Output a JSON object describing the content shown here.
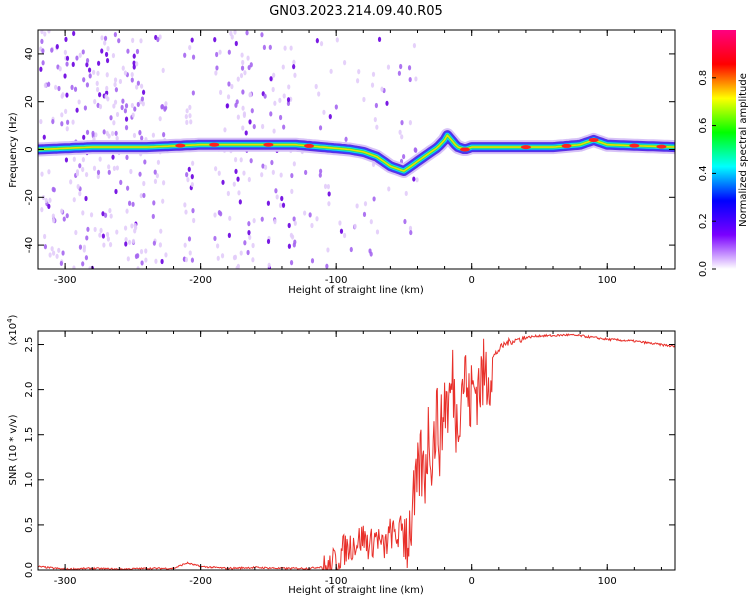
{
  "title": "GN03.2023.214.09.40.R05",
  "chart_data": [
    {
      "type": "heatmap",
      "xlabel": "Height of straight line (km)",
      "ylabel": "Frequency (Hz)",
      "xlim": [
        -320,
        150
      ],
      "ylim": [
        -50,
        50
      ],
      "xticks": [
        -300,
        -200,
        -100,
        0,
        100
      ],
      "yticks": [
        -40,
        -20,
        0,
        20,
        40
      ],
      "colorbar": {
        "label": "Normalized spectral amplitude",
        "range": [
          0,
          1
        ],
        "ticks": [
          "0.0",
          "0.2",
          "0.4",
          "0.6",
          "0.8"
        ],
        "colors": [
          "#ffffff",
          "#7a00ff",
          "#0000ff",
          "#00ffff",
          "#00ff00",
          "#ffff00",
          "#ff0000",
          "#ff0080"
        ]
      },
      "ridge": {
        "x": [
          -320,
          -280,
          -240,
          -200,
          -160,
          -130,
          -110,
          -90,
          -80,
          -70,
          -60,
          -55,
          -50,
          -45,
          -40,
          -35,
          -30,
          -25,
          -20,
          -18,
          -15,
          -12,
          -10,
          -5,
          0,
          20,
          60,
          80,
          90,
          100,
          150
        ],
        "y": [
          0,
          1,
          1,
          2,
          2,
          2,
          1,
          0,
          -1,
          -3,
          -7,
          -8,
          -9,
          -7,
          -5,
          -3,
          -1,
          1,
          4,
          6,
          4,
          2,
          1,
          0,
          1,
          1,
          1,
          2,
          4,
          2,
          1
        ]
      }
    },
    {
      "type": "line",
      "xlabel": "Height of straight line (km)",
      "ylabel": "SNR (10 * v/v)",
      "yscale_label": "(x10",
      "yscale_exp": "4",
      "xlim": [
        -320,
        150
      ],
      "ylim": [
        0,
        2.65
      ],
      "xticks": [
        -300,
        -200,
        -100,
        0,
        100
      ],
      "yticks": [
        "0.0",
        "0.5",
        "1.0",
        "1.5",
        "2.0",
        "2.5"
      ],
      "series": [
        {
          "color": "#e8302a",
          "x": [
            -320,
            -300,
            -280,
            -260,
            -240,
            -220,
            -210,
            -200,
            -180,
            -160,
            -140,
            -120,
            -105,
            -100,
            -95,
            -90,
            -85,
            -80,
            -75,
            -70,
            -65,
            -60,
            -55,
            -50,
            -47,
            -44,
            -41,
            -38,
            -35,
            -32,
            -29,
            -26,
            -23,
            -20,
            -17,
            -14,
            -11,
            -8,
            -5,
            -2,
            0,
            5,
            10,
            15,
            20,
            25,
            30,
            40,
            50,
            60,
            70,
            80,
            90,
            100,
            110,
            120,
            130,
            140,
            150
          ],
          "y": [
            0.04,
            0.01,
            0.02,
            0.01,
            0.02,
            0.02,
            0.08,
            0.04,
            0.02,
            0.03,
            0.02,
            0.02,
            0.05,
            0.15,
            0.25,
            0.3,
            0.35,
            0.4,
            0.3,
            0.42,
            0.25,
            0.45,
            0.4,
            0.55,
            0.45,
            0.7,
            0.9,
            1.3,
            1.1,
            1.6,
            1.4,
            1.8,
            1.5,
            2.0,
            1.9,
            2.2,
            1.7,
            2.1,
            2.3,
            1.9,
            2.05,
            2.15,
            2.25,
            2.35,
            2.45,
            2.52,
            2.55,
            2.58,
            2.6,
            2.6,
            2.61,
            2.6,
            2.58,
            2.56,
            2.55,
            2.54,
            2.52,
            2.5,
            2.48
          ]
        }
      ]
    }
  ]
}
